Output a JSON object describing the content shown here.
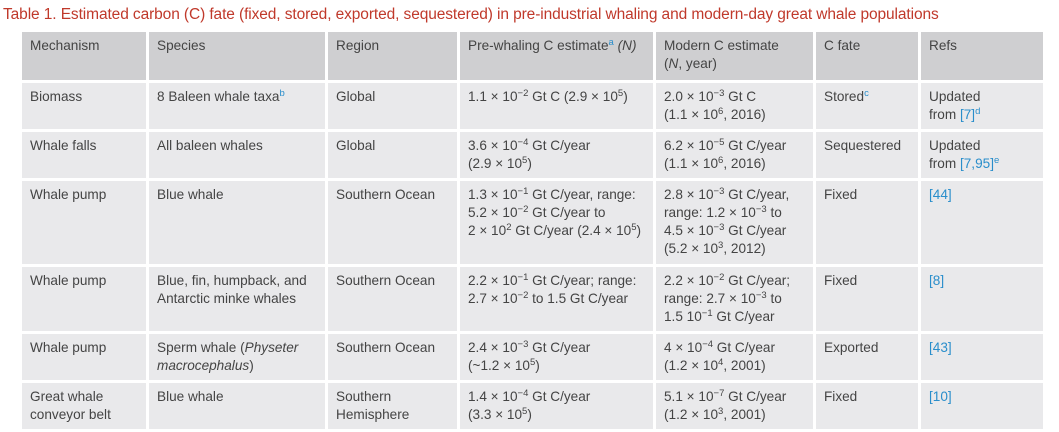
{
  "caption": "Table 1. Estimated carbon (C) fate (fixed, stored, exported, sequestered) in pre-industrial whaling and modern-day great whale populations",
  "colors": {
    "caption": "#c0392b",
    "header_bg": "#cfcfd1",
    "cell_bg": "#e9e9eb",
    "link": "#2a8ecb",
    "text": "#444444"
  },
  "headers": {
    "mechanism": "Mechanism",
    "species": "Species",
    "region": "Region",
    "prewhaling_prefix": "Pre-whaling C estimate",
    "prewhaling_sup": "a",
    "prewhaling_n": "(N)",
    "modern_line1": "Modern C estimate",
    "modern_line2": "(N, year)",
    "cfate": "C fate",
    "refs": "Refs"
  },
  "rows": [
    {
      "mechanism": [
        "Biomass"
      ],
      "species": "8 Baleen whale taxa",
      "species_sup": "b",
      "region": [
        "Global"
      ],
      "prewhaling": "1.1 × 10^-2 Gt C (2.9 × 10^6)",
      "modern": [
        "2.0 × 10^-3 Gt C",
        "(1.1 × 10^6, 2016)"
      ],
      "cfate": "Stored",
      "cfate_sup": "c",
      "refs": [
        "Updated",
        "from [7]",
        "d"
      ]
    },
    {
      "mechanism": [
        "Whale falls"
      ],
      "species": "All baleen whales",
      "region": [
        "Global"
      ],
      "prewhaling": [
        "3.6 × 10^-4 Gt C/year",
        "(2.9 × 10^5)"
      ],
      "modern": [
        "6.2 × 10^-5 Gt C/year",
        "(1.1 × 10^6, 2016)"
      ],
      "cfate": "Sequestered",
      "refs": [
        "Updated",
        "from [7,95]",
        "e"
      ]
    },
    {
      "mechanism": [
        "Whale pump"
      ],
      "species": "Blue whale",
      "region": [
        "Southern Ocean"
      ],
      "prewhaling": [
        "1.3 × 10^-1 Gt C/year, range:",
        "5.2 × 10^-2 Gt C/year to",
        "2 × 10^2 Gt C/year (2.4 × 10^5)"
      ],
      "modern": [
        "2.8 × 10^-3 Gt C/year,",
        "range: 1.2 × 10^-3 to",
        "4.5 × 10^-3 Gt C/year",
        "(5.2 × 10^3, 2012)"
      ],
      "cfate": "Fixed",
      "refs": [
        "[44]"
      ]
    },
    {
      "mechanism": [
        "Whale pump"
      ],
      "species": [
        "Blue, fin, humpback, and",
        "Antarctic minke whales"
      ],
      "region": [
        "Southern Ocean"
      ],
      "prewhaling": [
        "2.2 × 10^-1 Gt C/year; range:",
        "2.7 × 10^-2 to 1.5 Gt C/year"
      ],
      "modern": [
        "2.2 × 10^-2 Gt C/year;",
        "range: 2.7 × 10^-3 to",
        "1.5 10^-1 Gt C/year"
      ],
      "cfate": "Fixed",
      "refs": [
        "[8]"
      ]
    },
    {
      "mechanism": [
        "Whale pump"
      ],
      "species": [
        "Sperm whale (",
        "Physeter",
        "macrocephalus",
        ")"
      ],
      "region": [
        "Southern Ocean"
      ],
      "prewhaling": [
        "2.4 × 10^-3 Gt C/year",
        "(~1.2 × 10^5)"
      ],
      "modern": [
        "4 × 10^-4 Gt C/year",
        "(1.2 × 10^4, 2001)"
      ],
      "cfate": "Exported",
      "refs": [
        "[43]"
      ]
    },
    {
      "mechanism": [
        "Great whale",
        "conveyor belt"
      ],
      "species": "Blue whale",
      "region": [
        "Southern",
        "Hemisphere"
      ],
      "prewhaling": [
        "1.4 × 10^-4 Gt C/year",
        "(3.3 × 10^5)"
      ],
      "modern": [
        "5.1 × 10^-7 Gt C/year",
        "(1.2 × 10^3, 2001)"
      ],
      "cfate": "Fixed",
      "refs": [
        "[10]"
      ]
    }
  ]
}
